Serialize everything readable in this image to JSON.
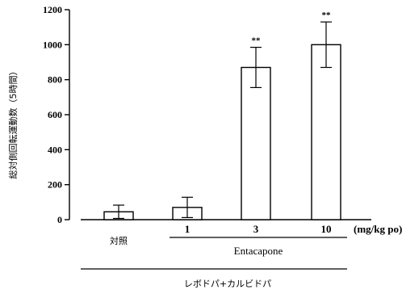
{
  "chart_data": {
    "type": "bar",
    "categories": [
      "対照",
      "1",
      "3",
      "10"
    ],
    "values": [
      45,
      70,
      870,
      1000
    ],
    "error": [
      38,
      58,
      115,
      130
    ],
    "significance": [
      "",
      "",
      "**",
      "**"
    ],
    "ylim": [
      0,
      1200
    ],
    "yticks": [
      0,
      200,
      400,
      600,
      800,
      1000,
      1200
    ],
    "ylabel": "総対側回転運動数（5時間）",
    "x_unit": "(mg/kg po)",
    "group_labels": {
      "entacapone": "Entacapone",
      "levodopa": "レボドパ+カルビドパ"
    },
    "grid": false,
    "legend": "none"
  }
}
